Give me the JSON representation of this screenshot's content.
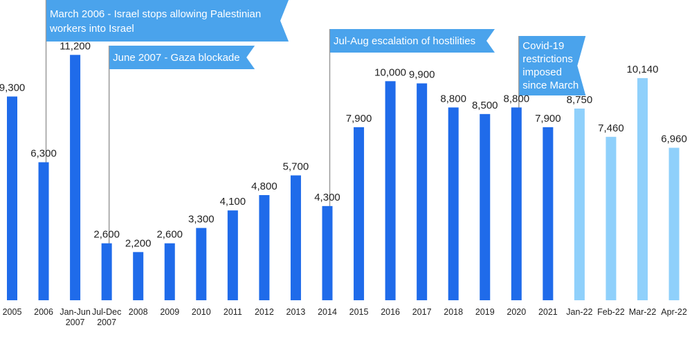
{
  "chart_data": {
    "type": "bar",
    "title": "",
    "xlabel": "",
    "ylabel": "",
    "ylim": [
      0,
      12000
    ],
    "grid": false,
    "legend": "none",
    "colors": {
      "historical": "#1f6bea",
      "monthly_2022": "#8fd0fb",
      "annotation": "#4aa3ec"
    },
    "categories": [
      [
        "2005"
      ],
      [
        "2006"
      ],
      [
        "Jan-Jun",
        "2007"
      ],
      [
        "Jul-Dec",
        "2007"
      ],
      [
        "2008"
      ],
      [
        "2009"
      ],
      [
        "2010"
      ],
      [
        "2011"
      ],
      [
        "2012"
      ],
      [
        "2013"
      ],
      [
        "2014"
      ],
      [
        "2015"
      ],
      [
        "2016"
      ],
      [
        "2017"
      ],
      [
        "2018"
      ],
      [
        "2019"
      ],
      [
        "2020"
      ],
      [
        "2021"
      ],
      [
        "Jan-22"
      ],
      [
        "Feb-22"
      ],
      [
        "Mar-22"
      ],
      [
        "Apr-22"
      ]
    ],
    "values": [
      9300,
      6300,
      11200,
      2600,
      2200,
      2600,
      3300,
      4100,
      4800,
      5700,
      4300,
      7900,
      10000,
      9900,
      8800,
      8500,
      8800,
      7900,
      8750,
      7460,
      10140,
      6960
    ],
    "value_labels": [
      "9,300",
      "6,300",
      "11,200",
      "2,600",
      "2,200",
      "2,600",
      "3,300",
      "4,100",
      "4,800",
      "5,700",
      "4,300",
      "7,900",
      "10,000",
      "9,900",
      "8,800",
      "8,500",
      "8,800",
      "7,900",
      "8,750",
      "7,460",
      "10,140",
      "6,960"
    ],
    "light_from_index": 18,
    "annotations": [
      {
        "category_index": 1,
        "lines": [
          "March 2006 - Israel stops allowing Palestinian",
          "workers into Israel"
        ]
      },
      {
        "category_index": 3,
        "lines": [
          "June 2007 - Gaza blockade"
        ]
      },
      {
        "category_index": 10,
        "lines": [
          "Jul-Aug escalation of hostilities"
        ]
      },
      {
        "category_index": 16,
        "lines": [
          "Covid-19",
          "restrictions",
          "imposed",
          "since March"
        ]
      }
    ]
  }
}
